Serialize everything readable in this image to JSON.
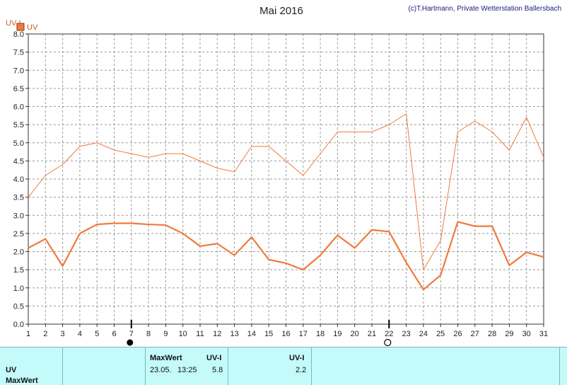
{
  "chart_data": {
    "type": "line",
    "title": "Mai 2016",
    "credit": "(c)T.Hartmann, Private Wetterstation Ballersbach",
    "ylabel": "UV-I",
    "ylim": [
      0,
      8
    ],
    "yticks": [
      "0.0",
      "0.5",
      "1.0",
      "1.5",
      "2.0",
      "2.5",
      "3.0",
      "3.5",
      "4.0",
      "4.5",
      "5.0",
      "5.5",
      "6.0",
      "6.5",
      "7.0",
      "7.5",
      "8.0"
    ],
    "x": [
      1,
      2,
      3,
      4,
      5,
      6,
      7,
      8,
      9,
      10,
      11,
      12,
      13,
      14,
      15,
      16,
      17,
      18,
      19,
      20,
      21,
      22,
      23,
      24,
      25,
      26,
      27,
      28,
      29,
      30,
      31
    ],
    "grid": true,
    "legend_position": "top-left",
    "legend": [
      {
        "name": "UV",
        "color": "#f07a3c"
      }
    ],
    "series": [
      {
        "color": "#f07a3c",
        "style": "thin",
        "values": [
          3.5,
          4.1,
          4.4,
          4.9,
          5.0,
          4.8,
          4.7,
          4.6,
          4.7,
          4.7,
          4.5,
          4.3,
          4.2,
          4.9,
          4.9,
          4.5,
          4.1,
          4.7,
          5.3,
          5.3,
          5.3,
          5.5,
          5.8,
          1.5,
          2.3,
          5.3,
          5.6,
          5.3,
          4.8,
          5.7,
          4.6
        ]
      },
      {
        "color": "#f07a3c",
        "style": "thick",
        "values": [
          2.1,
          2.35,
          1.6,
          2.5,
          2.75,
          2.78,
          2.78,
          2.75,
          2.73,
          2.5,
          2.15,
          2.22,
          1.9,
          2.4,
          1.78,
          1.68,
          1.5,
          1.9,
          2.45,
          2.1,
          2.6,
          2.55,
          1.7,
          0.95,
          1.35,
          2.82,
          2.7,
          2.7,
          1.62,
          1.98,
          1.85
        ]
      }
    ],
    "moon_markers": [
      {
        "day": 7,
        "phase": "new-moon"
      },
      {
        "day": 22,
        "phase": "full-moon"
      }
    ]
  },
  "table": {
    "row_labels": [
      "UV",
      "MaxWert"
    ],
    "max_header": "MaxWert",
    "unit_header": "UV-I",
    "max_date": "23.05.",
    "max_time": "13:25",
    "max_value": "5.8",
    "avg_header": "UV-I",
    "avg_value": "2.2"
  }
}
